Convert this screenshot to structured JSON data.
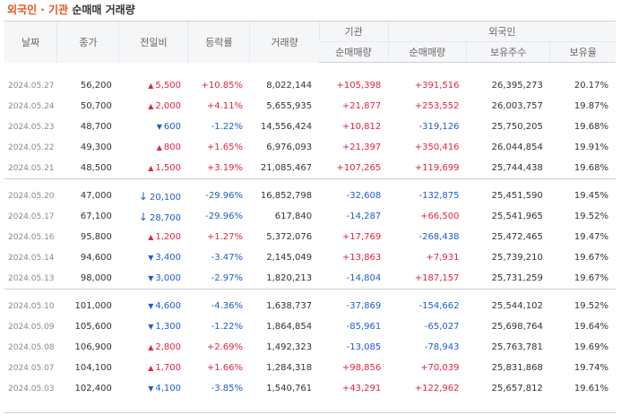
{
  "title": {
    "highlight": "외국인 · 기관",
    "rest": "순매매 거래량"
  },
  "headers": {
    "date": "날짜",
    "close": "종가",
    "change": "전일비",
    "rate": "등락률",
    "volume": "거래량",
    "inst_group": "기관",
    "foreign_group": "외국인",
    "inst_net": "순매매량",
    "foreign_net": "순매매량",
    "foreign_holdings": "보유주수",
    "foreign_ratio": "보유율"
  },
  "rows": [
    {
      "date": "2024.05.27",
      "close": "56,200",
      "chg_dir": "up",
      "chg_icon": "▲",
      "chg": "5,500",
      "rate": "+10.85%",
      "vol": "8,022,144",
      "inst": "+105,398",
      "frn": "+391,516",
      "hold": "26,395,273",
      "ratio": "20.17%"
    },
    {
      "date": "2024.05.24",
      "close": "50,700",
      "chg_dir": "up",
      "chg_icon": "▲",
      "chg": "2,000",
      "rate": "+4.11%",
      "vol": "5,655,935",
      "inst": "+21,877",
      "frn": "+253,552",
      "hold": "26,003,757",
      "ratio": "19.87%"
    },
    {
      "date": "2024.05.23",
      "close": "48,700",
      "chg_dir": "down",
      "chg_icon": "▼",
      "chg": "600",
      "rate": "-1.22%",
      "vol": "14,556,424",
      "inst": "+10,812",
      "frn": "-319,126",
      "hold": "25,750,205",
      "ratio": "19.68%"
    },
    {
      "date": "2024.05.22",
      "close": "49,300",
      "chg_dir": "up",
      "chg_icon": "▲",
      "chg": "800",
      "rate": "+1.65%",
      "vol": "6,976,093",
      "inst": "+21,397",
      "frn": "+350,416",
      "hold": "26,044,854",
      "ratio": "19.91%"
    },
    {
      "date": "2024.05.21",
      "close": "48,500",
      "chg_dir": "up",
      "chg_icon": "▲",
      "chg": "1,500",
      "rate": "+3.19%",
      "vol": "21,085,467",
      "inst": "+107,265",
      "frn": "+119,699",
      "hold": "25,744,438",
      "ratio": "19.68%"
    },
    {
      "date": "2024.05.20",
      "close": "47,000",
      "chg_dir": "down",
      "chg_icon": "↓",
      "chg": "20,100",
      "rate": "-29.96%",
      "vol": "16,852,798",
      "inst": "-32,608",
      "frn": "-132,875",
      "hold": "25,451,590",
      "ratio": "19.45%"
    },
    {
      "date": "2024.05.17",
      "close": "67,100",
      "chg_dir": "down",
      "chg_icon": "↓",
      "chg": "28,700",
      "rate": "-29.96%",
      "vol": "617,840",
      "inst": "-14,287",
      "frn": "+66,500",
      "hold": "25,541,965",
      "ratio": "19.52%"
    },
    {
      "date": "2024.05.16",
      "close": "95,800",
      "chg_dir": "up",
      "chg_icon": "▲",
      "chg": "1,200",
      "rate": "+1.27%",
      "vol": "5,372,076",
      "inst": "+17,769",
      "frn": "-268,438",
      "hold": "25,472,465",
      "ratio": "19.47%"
    },
    {
      "date": "2024.05.14",
      "close": "94,600",
      "chg_dir": "down",
      "chg_icon": "▼",
      "chg": "3,400",
      "rate": "-3.47%",
      "vol": "2,145,049",
      "inst": "+13,863",
      "frn": "+7,931",
      "hold": "25,739,210",
      "ratio": "19.67%"
    },
    {
      "date": "2024.05.13",
      "close": "98,000",
      "chg_dir": "down",
      "chg_icon": "▼",
      "chg": "3,000",
      "rate": "-2.97%",
      "vol": "1,820,213",
      "inst": "-14,804",
      "frn": "+187,157",
      "hold": "25,731,259",
      "ratio": "19.67%"
    },
    {
      "date": "2024.05.10",
      "close": "101,000",
      "chg_dir": "down",
      "chg_icon": "▼",
      "chg": "4,600",
      "rate": "-4.36%",
      "vol": "1,638,737",
      "inst": "-37,869",
      "frn": "-154,662",
      "hold": "25,544,102",
      "ratio": "19.52%"
    },
    {
      "date": "2024.05.09",
      "close": "105,600",
      "chg_dir": "down",
      "chg_icon": "▼",
      "chg": "1,300",
      "rate": "-1.22%",
      "vol": "1,864,854",
      "inst": "-85,961",
      "frn": "-65,027",
      "hold": "25,698,764",
      "ratio": "19.64%"
    },
    {
      "date": "2024.05.08",
      "close": "106,900",
      "chg_dir": "up",
      "chg_icon": "▲",
      "chg": "2,800",
      "rate": "+2.69%",
      "vol": "1,492,323",
      "inst": "-13,085",
      "frn": "-78,943",
      "hold": "25,763,781",
      "ratio": "19.69%"
    },
    {
      "date": "2024.05.07",
      "close": "104,100",
      "chg_dir": "up",
      "chg_icon": "▲",
      "chg": "1,700",
      "rate": "+1.66%",
      "vol": "1,284,318",
      "inst": "+98,856",
      "frn": "+70,039",
      "hold": "25,831,868",
      "ratio": "19.74%"
    },
    {
      "date": "2024.05.03",
      "close": "102,400",
      "chg_dir": "down",
      "chg_icon": "▼",
      "chg": "4,100",
      "rate": "-3.85%",
      "vol": "1,540,761",
      "inst": "+43,291",
      "frn": "+122,962",
      "hold": "25,657,812",
      "ratio": "19.61%"
    }
  ],
  "colors": {
    "up": "#e12343",
    "down": "#1d5ec6",
    "title_accent": "#e8541e",
    "header_bg": "#f5f6f8"
  }
}
